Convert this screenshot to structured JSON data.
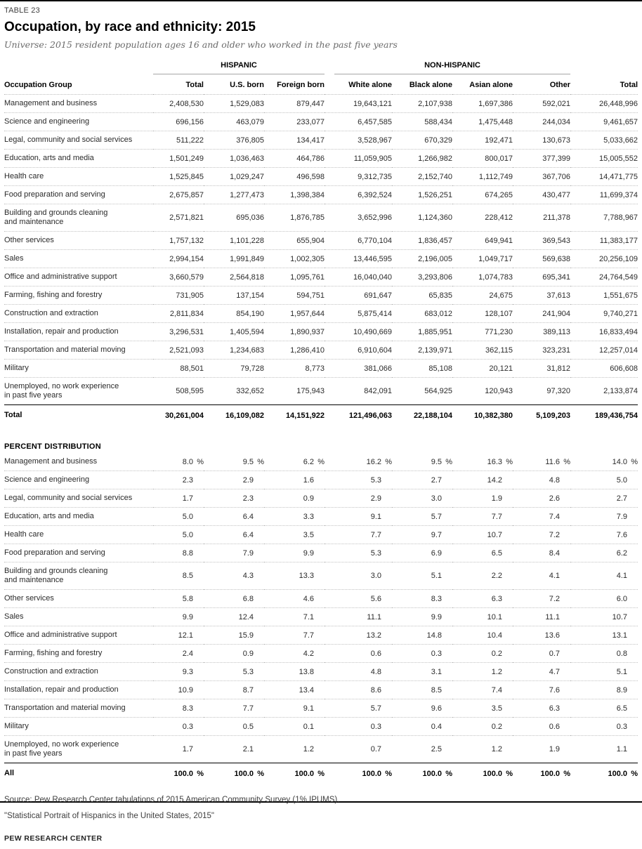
{
  "page": {
    "table_label": "TABLE 23",
    "title": "Occupation, by race and ethnicity: 2015",
    "subtitle": "Universe: 2015 resident population ages 16 and older who worked in the past five years",
    "source_line1": "Source: Pew Research Center tabulations of 2015 American Community Survey (1% IPUMS).",
    "source_line2": "\"Statistical Portrait of Hispanics in the United States, 2015\"",
    "brand": "PEW RESEARCH CENTER"
  },
  "table": {
    "group_headers": [
      {
        "label": "HISPANIC",
        "span": 3
      },
      {
        "label": "NON-HISPANIC",
        "span": 4
      }
    ],
    "columns": [
      "Occupation Group",
      "Total",
      "U.S. born",
      "Foreign born",
      "White alone",
      "Black alone",
      "Asian alone",
      "Other",
      "Total"
    ],
    "counts_rows": [
      {
        "label": "Management and business",
        "values": [
          "2,408,530",
          "1,529,083",
          "879,447",
          "19,643,121",
          "2,107,938",
          "1,697,386",
          "592,021",
          "26,448,996"
        ]
      },
      {
        "label": "Science and engineering",
        "values": [
          "696,156",
          "463,079",
          "233,077",
          "6,457,585",
          "588,434",
          "1,475,448",
          "244,034",
          "9,461,657"
        ]
      },
      {
        "label": "Legal, community and social services",
        "values": [
          "511,222",
          "376,805",
          "134,417",
          "3,528,967",
          "670,329",
          "192,471",
          "130,673",
          "5,033,662"
        ]
      },
      {
        "label": "Education, arts and media",
        "values": [
          "1,501,249",
          "1,036,463",
          "464,786",
          "11,059,905",
          "1,266,982",
          "800,017",
          "377,399",
          "15,005,552"
        ]
      },
      {
        "label": "Health care",
        "values": [
          "1,525,845",
          "1,029,247",
          "496,598",
          "9,312,735",
          "2,152,740",
          "1,112,749",
          "367,706",
          "14,471,775"
        ]
      },
      {
        "label": "Food preparation and serving",
        "values": [
          "2,675,857",
          "1,277,473",
          "1,398,384",
          "6,392,524",
          "1,526,251",
          "674,265",
          "430,477",
          "11,699,374"
        ]
      },
      {
        "label": "Building and grounds cleaning\nand maintenance",
        "values": [
          "2,571,821",
          "695,036",
          "1,876,785",
          "3,652,996",
          "1,124,360",
          "228,412",
          "211,378",
          "7,788,967"
        ]
      },
      {
        "label": "Other services",
        "values": [
          "1,757,132",
          "1,101,228",
          "655,904",
          "6,770,104",
          "1,836,457",
          "649,941",
          "369,543",
          "11,383,177"
        ]
      },
      {
        "label": "Sales",
        "values": [
          "2,994,154",
          "1,991,849",
          "1,002,305",
          "13,446,595",
          "2,196,005",
          "1,049,717",
          "569,638",
          "20,256,109"
        ]
      },
      {
        "label": "Office and administrative support",
        "values": [
          "3,660,579",
          "2,564,818",
          "1,095,761",
          "16,040,040",
          "3,293,806",
          "1,074,783",
          "695,341",
          "24,764,549"
        ]
      },
      {
        "label": "Farming, fishing and forestry",
        "values": [
          "731,905",
          "137,154",
          "594,751",
          "691,647",
          "65,835",
          "24,675",
          "37,613",
          "1,551,675"
        ]
      },
      {
        "label": "Construction and extraction",
        "values": [
          "2,811,834",
          "854,190",
          "1,957,644",
          "5,875,414",
          "683,012",
          "128,107",
          "241,904",
          "9,740,271"
        ]
      },
      {
        "label": "Installation, repair and production",
        "values": [
          "3,296,531",
          "1,405,594",
          "1,890,937",
          "10,490,669",
          "1,885,951",
          "771,230",
          "389,113",
          "16,833,494"
        ]
      },
      {
        "label": "Transportation and material moving",
        "values": [
          "2,521,093",
          "1,234,683",
          "1,286,410",
          "6,910,604",
          "2,139,971",
          "362,115",
          "323,231",
          "12,257,014"
        ]
      },
      {
        "label": "Military",
        "values": [
          "88,501",
          "79,728",
          "8,773",
          "381,066",
          "85,108",
          "20,121",
          "31,812",
          "606,608"
        ]
      },
      {
        "label": "Unemployed, no work experience\nin past five years",
        "values": [
          "508,595",
          "332,652",
          "175,943",
          "842,091",
          "564,925",
          "120,943",
          "97,320",
          "2,133,874"
        ]
      }
    ],
    "counts_total": {
      "label": "Total",
      "values": [
        "30,261,004",
        "16,109,082",
        "14,151,922",
        "121,496,063",
        "22,188,104",
        "10,382,380",
        "5,109,203",
        "189,436,754"
      ]
    },
    "percent_label": "PERCENT DISTRIBUTION",
    "percent_rows": [
      {
        "label": "Management and business",
        "pct": true,
        "values": [
          "8.0",
          "9.5",
          "6.2",
          "16.2",
          "9.5",
          "16.3",
          "11.6",
          "14.0"
        ]
      },
      {
        "label": "Science and engineering",
        "values": [
          "2.3",
          "2.9",
          "1.6",
          "5.3",
          "2.7",
          "14.2",
          "4.8",
          "5.0"
        ]
      },
      {
        "label": "Legal, community and social services",
        "values": [
          "1.7",
          "2.3",
          "0.9",
          "2.9",
          "3.0",
          "1.9",
          "2.6",
          "2.7"
        ]
      },
      {
        "label": "Education, arts and media",
        "values": [
          "5.0",
          "6.4",
          "3.3",
          "9.1",
          "5.7",
          "7.7",
          "7.4",
          "7.9"
        ]
      },
      {
        "label": "Health care",
        "values": [
          "5.0",
          "6.4",
          "3.5",
          "7.7",
          "9.7",
          "10.7",
          "7.2",
          "7.6"
        ]
      },
      {
        "label": "Food preparation and serving",
        "values": [
          "8.8",
          "7.9",
          "9.9",
          "5.3",
          "6.9",
          "6.5",
          "8.4",
          "6.2"
        ]
      },
      {
        "label": "Building and grounds cleaning\nand maintenance",
        "values": [
          "8.5",
          "4.3",
          "13.3",
          "3.0",
          "5.1",
          "2.2",
          "4.1",
          "4.1"
        ]
      },
      {
        "label": "Other services",
        "values": [
          "5.8",
          "6.8",
          "4.6",
          "5.6",
          "8.3",
          "6.3",
          "7.2",
          "6.0"
        ]
      },
      {
        "label": "Sales",
        "values": [
          "9.9",
          "12.4",
          "7.1",
          "11.1",
          "9.9",
          "10.1",
          "11.1",
          "10.7"
        ]
      },
      {
        "label": "Office and administrative support",
        "values": [
          "12.1",
          "15.9",
          "7.7",
          "13.2",
          "14.8",
          "10.4",
          "13.6",
          "13.1"
        ]
      },
      {
        "label": "Farming, fishing and forestry",
        "values": [
          "2.4",
          "0.9",
          "4.2",
          "0.6",
          "0.3",
          "0.2",
          "0.7",
          "0.8"
        ]
      },
      {
        "label": "Construction and extraction",
        "values": [
          "9.3",
          "5.3",
          "13.8",
          "4.8",
          "3.1",
          "1.2",
          "4.7",
          "5.1"
        ]
      },
      {
        "label": "Installation, repair and production",
        "values": [
          "10.9",
          "8.7",
          "13.4",
          "8.6",
          "8.5",
          "7.4",
          "7.6",
          "8.9"
        ]
      },
      {
        "label": "Transportation and material moving",
        "values": [
          "8.3",
          "7.7",
          "9.1",
          "5.7",
          "9.6",
          "3.5",
          "6.3",
          "6.5"
        ]
      },
      {
        "label": "Military",
        "values": [
          "0.3",
          "0.5",
          "0.1",
          "0.3",
          "0.4",
          "0.2",
          "0.6",
          "0.3"
        ]
      },
      {
        "label": "Unemployed, no work experience\nin past five years",
        "values": [
          "1.7",
          "2.1",
          "1.2",
          "0.7",
          "2.5",
          "1.2",
          "1.9",
          "1.1"
        ]
      }
    ],
    "percent_all": {
      "label": "All",
      "pct": true,
      "values": [
        "100.0",
        "100.0",
        "100.0",
        "100.0",
        "100.0",
        "100.0",
        "100.0",
        "100.0"
      ]
    }
  }
}
